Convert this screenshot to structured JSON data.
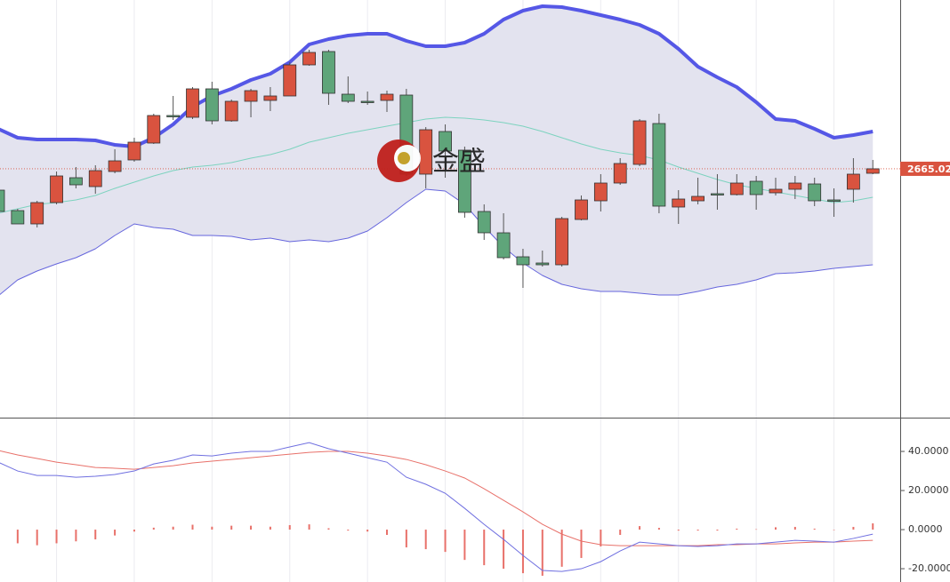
{
  "chart_data": [
    {
      "type": "candlestick",
      "watermark": "金盛",
      "ylim": [
        2553,
        2741
      ],
      "up_color": "#d9533f",
      "down_color": "#5fa57a",
      "open": [
        2655.4,
        2646.2,
        2640.2,
        2649.8,
        2661.0,
        2657.0,
        2663.8,
        2669.0,
        2676.6,
        2689.0,
        2688.2,
        2701.0,
        2686.6,
        2695.4,
        2695.8,
        2697.8,
        2711.8,
        2717.8,
        2698.6,
        2695.4,
        2695.8,
        2698.2,
        2662.6,
        2681.8,
        2673.4,
        2645.8,
        2636.2,
        2625.4,
        2622.6,
        2621.8,
        2642.2,
        2650.6,
        2658.6,
        2667.0,
        2685.4,
        2647.8,
        2650.6,
        2653.8,
        2653.4,
        2659.4,
        2654.2,
        2655.8,
        2658.2,
        2651.0,
        2655.8,
        2663.0
      ],
      "high": [
        2659.0,
        2647.0,
        2650.6,
        2663.8,
        2665.8,
        2666.6,
        2673.8,
        2679.0,
        2689.8,
        2697.8,
        2701.8,
        2704.2,
        2696.2,
        2701.0,
        2701.8,
        2713.0,
        2718.6,
        2718.6,
        2706.6,
        2699.8,
        2700.2,
        2701.0,
        2683.8,
        2685.0,
        2675.0,
        2649.0,
        2645.0,
        2629.0,
        2628.2,
        2643.4,
        2653.0,
        2662.6,
        2669.8,
        2687.4,
        2689.8,
        2655.4,
        2661.0,
        2662.6,
        2662.6,
        2661.8,
        2661.0,
        2661.8,
        2661.0,
        2656.2,
        2669.8,
        2669.0
      ],
      "low": [
        2641.0,
        2640.2,
        2638.6,
        2649.0,
        2656.2,
        2653.8,
        2663.0,
        2668.2,
        2676.2,
        2687.0,
        2687.4,
        2685.0,
        2686.2,
        2688.2,
        2691.0,
        2697.8,
        2711.4,
        2693.8,
        2694.6,
        2693.8,
        2690.6,
        2661.8,
        2656.2,
        2661.0,
        2643.0,
        2633.0,
        2624.2,
        2611.4,
        2621.0,
        2621.0,
        2641.8,
        2645.8,
        2657.8,
        2666.2,
        2645.0,
        2640.2,
        2649.0,
        2646.6,
        2653.0,
        2646.6,
        2653.0,
        2651.4,
        2648.2,
        2643.4,
        2649.8,
        2662.6
      ],
      "close": [
        2645.8,
        2640.2,
        2649.8,
        2661.8,
        2657.8,
        2664.2,
        2668.6,
        2677.0,
        2689.0,
        2688.6,
        2701.0,
        2686.6,
        2695.4,
        2700.2,
        2697.8,
        2711.8,
        2717.4,
        2699.0,
        2695.4,
        2695.0,
        2698.6,
        2662.6,
        2682.6,
        2673.0,
        2645.4,
        2636.2,
        2625.0,
        2621.8,
        2621.8,
        2642.6,
        2651.0,
        2658.6,
        2667.4,
        2686.6,
        2648.2,
        2651.4,
        2652.6,
        2653.4,
        2658.6,
        2653.4,
        2655.8,
        2658.6,
        2650.6,
        2650.6,
        2662.6,
        2665.02
      ],
      "bands": {
        "fill": "#e3e3ef",
        "upper": {
          "color": "#5557e6",
          "values": [
            2683.0,
            2679.0,
            2678.2,
            2678.2,
            2678.2,
            2677.8,
            2675.8,
            2675.0,
            2679.0,
            2685.0,
            2693.0,
            2697.8,
            2701.0,
            2705.0,
            2707.8,
            2713.0,
            2721.0,
            2723.4,
            2725.0,
            2725.8,
            2725.8,
            2722.6,
            2720.2,
            2720.2,
            2721.8,
            2725.8,
            2732.2,
            2736.2,
            2738.2,
            2737.8,
            2736.2,
            2734.2,
            2732.2,
            2729.8,
            2725.8,
            2719.0,
            2711.0,
            2706.2,
            2701.8,
            2695.0,
            2687.4,
            2686.6,
            2683.0,
            2679.0,
            2680.2,
            2681.8
          ]
        },
        "middle": {
          "color": "#7dd3bf",
          "values": [
            2645.0,
            2647.0,
            2649.0,
            2649.8,
            2651.0,
            2653.0,
            2656.2,
            2659.0,
            2661.8,
            2664.2,
            2665.8,
            2666.6,
            2667.8,
            2669.8,
            2671.4,
            2673.8,
            2677.0,
            2679.0,
            2681.0,
            2682.6,
            2684.2,
            2685.8,
            2687.4,
            2688.2,
            2687.8,
            2687.0,
            2685.8,
            2684.2,
            2681.8,
            2679.0,
            2676.2,
            2673.8,
            2672.2,
            2671.0,
            2669.0,
            2665.8,
            2663.0,
            2660.2,
            2657.8,
            2656.2,
            2654.6,
            2653.0,
            2651.4,
            2649.8,
            2650.6,
            2652.2
          ]
        },
        "lower": {
          "color": "#6666dd",
          "values": [
            2607.8,
            2615.0,
            2619.0,
            2622.2,
            2625.0,
            2629.0,
            2635.0,
            2640.2,
            2638.6,
            2637.8,
            2635.0,
            2635.0,
            2634.6,
            2633.0,
            2633.8,
            2632.2,
            2633.0,
            2632.2,
            2633.8,
            2637.0,
            2643.0,
            2649.8,
            2655.8,
            2655.0,
            2649.0,
            2639.0,
            2629.8,
            2622.6,
            2617.0,
            2613.0,
            2611.0,
            2609.8,
            2609.8,
            2609.0,
            2608.2,
            2608.2,
            2609.8,
            2611.8,
            2613.0,
            2615.0,
            2617.8,
            2618.2,
            2619.0,
            2620.2,
            2621.0,
            2621.8
          ]
        }
      },
      "price_line": {
        "value": 2665.02,
        "label": "2665.020",
        "color": "#d9533f"
      }
    },
    {
      "type": "macd",
      "ylim": [
        -26.8,
        57.3
      ],
      "yticks": [
        {
          "value": 40,
          "label": "40.0000"
        },
        {
          "value": 20,
          "label": "20.0000"
        },
        {
          "value": 0,
          "label": "0.0000"
        },
        {
          "value": -20,
          "label": "-20.0000"
        }
      ],
      "dif": {
        "color": "#6f6fe0",
        "values": [
          34.5,
          30,
          27.7,
          27.7,
          26.8,
          27.3,
          28.2,
          30,
          33.6,
          35.5,
          38.2,
          37.7,
          39.1,
          40,
          40,
          42.3,
          44.5,
          41.4,
          39.1,
          36.8,
          34.5,
          26.8,
          23.2,
          18.6,
          10.9,
          2.7,
          -5,
          -13.2,
          -20.9,
          -21.4,
          -20,
          -16.4,
          -10.9,
          -6.4,
          -7.3,
          -8.2,
          -8.6,
          -8.2,
          -7.3,
          -7.3,
          -6.4,
          -5.5,
          -5.9,
          -6.4,
          -4.5,
          -2.3
        ]
      },
      "dea": {
        "color": "#e8716a",
        "values": [
          40.5,
          38.2,
          36.4,
          34.5,
          33.2,
          31.8,
          31.4,
          30.9,
          31.8,
          32.7,
          34.1,
          35,
          35.9,
          36.8,
          37.7,
          38.6,
          39.5,
          40,
          40,
          39.1,
          37.7,
          35.9,
          33.2,
          30,
          26.4,
          20.9,
          15,
          9.1,
          2.7,
          -2.3,
          -5.9,
          -7.7,
          -8.2,
          -8.2,
          -8.2,
          -8.2,
          -8.2,
          -7.7,
          -7.7,
          -7.3,
          -7.3,
          -6.8,
          -6.4,
          -6.4,
          -5.9,
          -5.5
        ]
      },
      "histogram": {
        "color": "#e8716a",
        "values": [
          -6,
          -7,
          -8,
          -7,
          -6,
          -5,
          -3,
          -1,
          1,
          1.5,
          2.5,
          1.5,
          2,
          2,
          1.5,
          2.3,
          2.7,
          0.7,
          -0.5,
          -1,
          -2.7,
          -9.1,
          -10,
          -11.4,
          -15.5,
          -18.2,
          -20,
          -22.3,
          -23.6,
          -19,
          -14.5,
          -8.6,
          -2.7,
          1.8,
          0.9,
          -0.5,
          -0.5,
          -0.5,
          0.5,
          0.2,
          1.2,
          1.4,
          0.5,
          0,
          1.4,
          3.2
        ]
      }
    }
  ]
}
